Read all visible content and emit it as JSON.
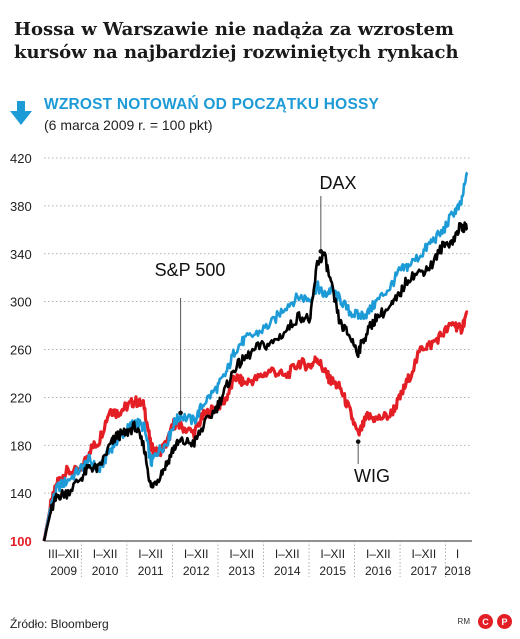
{
  "headline": "Hossa w Warszawie nie nadąża za wzrostem kursów na najbardziej rozwiniętych rynkach",
  "subtitle": "WZROST NOTOWAŃ OD POCZĄTKU HOSSY",
  "subnote": "(6 marca 2009 r. = 100 pkt)",
  "source": "Źródło: Bloomberg",
  "credits": {
    "rm": "RM",
    "c": "C",
    "p": "P"
  },
  "colors": {
    "sp500": "#1d9bd6",
    "dax": "#000000",
    "wig": "#e31e24",
    "accent": "#1d9bd6",
    "axis_highlight": "#e31e24"
  },
  "chart_data": {
    "type": "line",
    "ylim": [
      100,
      420
    ],
    "yticks": [
      100,
      140,
      180,
      220,
      260,
      300,
      340,
      380,
      420
    ],
    "x_unit": "years since 6 March 2009",
    "xlim": [
      0,
      9.4
    ],
    "period_labels": [
      {
        "top": "III–XII",
        "year": "2009"
      },
      {
        "top": "I–XII",
        "year": "2010"
      },
      {
        "top": "I–XII",
        "year": "2011"
      },
      {
        "top": "I–XII",
        "year": "2012"
      },
      {
        "top": "I–XII",
        "year": "2013"
      },
      {
        "top": "I–XII",
        "year": "2014"
      },
      {
        "top": "I–XII",
        "year": "2015"
      },
      {
        "top": "I–XII",
        "year": "2016"
      },
      {
        "top": "I–XII",
        "year": "2017"
      },
      {
        "top": "I",
        "year": "2018"
      }
    ],
    "annotations": [
      {
        "text": "S&P 500",
        "series": "S&P 500",
        "x": 3.0,
        "y": 207
      },
      {
        "text": "DAX",
        "series": "DAX",
        "x": 6.08,
        "y": 342
      },
      {
        "text": "WIG",
        "series": "WIG",
        "x": 6.9,
        "y": 183
      }
    ],
    "series": [
      {
        "name": "WIG",
        "color": "#e31e24",
        "x": [
          0,
          0.15,
          0.3,
          0.5,
          0.8,
          1.0,
          1.2,
          1.45,
          1.6,
          1.8,
          2.0,
          2.2,
          2.35,
          2.5,
          2.7,
          2.85,
          3.0,
          3.3,
          3.5,
          3.8,
          4.0,
          4.2,
          4.4,
          4.7,
          5.0,
          5.3,
          5.6,
          5.85,
          6.0,
          6.15,
          6.3,
          6.5,
          6.7,
          6.9,
          7.1,
          7.3,
          7.6,
          7.8,
          8.0,
          8.3,
          8.5,
          8.75,
          9.0,
          9.15,
          9.3
        ],
        "y": [
          100,
          130,
          150,
          158,
          158,
          176,
          183,
          210,
          207,
          212,
          217,
          213,
          178,
          173,
          182,
          198,
          196,
          190,
          205,
          212,
          219,
          237,
          232,
          236,
          243,
          237,
          249,
          246,
          253,
          242,
          234,
          228,
          210,
          188,
          204,
          202,
          205,
          218,
          235,
          262,
          264,
          273,
          282,
          276,
          291
        ]
      },
      {
        "name": "S&P 500",
        "color": "#1d9bd6",
        "x": [
          0,
          0.15,
          0.3,
          0.5,
          0.8,
          1.0,
          1.2,
          1.45,
          1.6,
          1.8,
          2.0,
          2.2,
          2.35,
          2.5,
          2.7,
          2.85,
          3.0,
          3.3,
          3.5,
          3.8,
          4.0,
          4.2,
          4.4,
          4.7,
          5.0,
          5.3,
          5.6,
          5.85,
          6.0,
          6.15,
          6.3,
          6.5,
          6.7,
          6.9,
          7.1,
          7.3,
          7.6,
          7.8,
          8.0,
          8.3,
          8.5,
          8.75,
          9.0,
          9.15,
          9.3
        ],
        "y": [
          100,
          130,
          145,
          150,
          160,
          168,
          158,
          176,
          184,
          192,
          200,
          195,
          165,
          175,
          182,
          198,
          205,
          200,
          215,
          228,
          240,
          260,
          268,
          274,
          282,
          296,
          304,
          302,
          313,
          305,
          310,
          302,
          292,
          288,
          290,
          300,
          312,
          325,
          330,
          340,
          350,
          358,
          375,
          380,
          408
        ]
      },
      {
        "name": "DAX",
        "color": "#000000",
        "x": [
          0,
          0.15,
          0.3,
          0.5,
          0.8,
          1.0,
          1.2,
          1.45,
          1.6,
          1.8,
          2.0,
          2.2,
          2.35,
          2.5,
          2.7,
          2.85,
          3.0,
          3.3,
          3.5,
          3.8,
          4.0,
          4.2,
          4.4,
          4.7,
          5.0,
          5.3,
          5.6,
          5.85,
          6.0,
          6.15,
          6.3,
          6.5,
          6.7,
          6.9,
          7.1,
          7.3,
          7.6,
          7.8,
          8.0,
          8.3,
          8.5,
          8.75,
          9.0,
          9.15,
          9.3
        ],
        "y": [
          100,
          125,
          138,
          140,
          152,
          162,
          160,
          180,
          188,
          190,
          196,
          178,
          144,
          152,
          165,
          178,
          183,
          182,
          196,
          212,
          228,
          245,
          252,
          262,
          265,
          275,
          288,
          285,
          332,
          340,
          315,
          282,
          272,
          258,
          275,
          287,
          295,
          305,
          320,
          325,
          330,
          346,
          352,
          364,
          360
        ]
      }
    ]
  }
}
